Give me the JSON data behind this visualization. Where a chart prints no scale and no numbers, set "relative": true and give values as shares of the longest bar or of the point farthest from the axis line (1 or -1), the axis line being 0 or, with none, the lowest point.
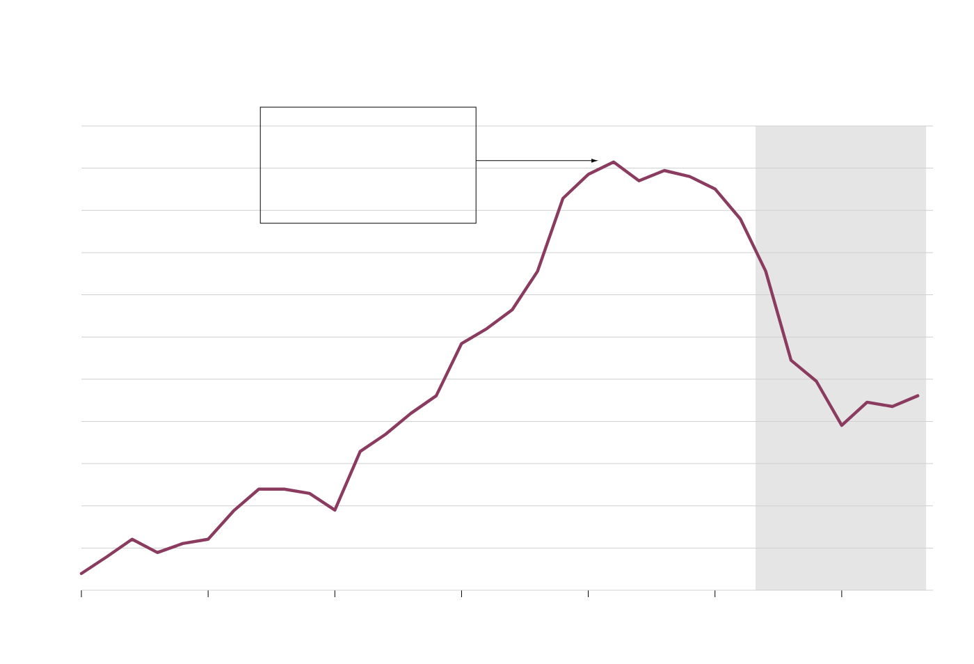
{
  "chart_data": {
    "type": "line",
    "relative": true,
    "categories": [
      null,
      null,
      null,
      null,
      null,
      null,
      null,
      null,
      null,
      null,
      null,
      null,
      null,
      null,
      null,
      null,
      null,
      null,
      null,
      null,
      null,
      null,
      null,
      null,
      null,
      null,
      null,
      null,
      null,
      null,
      null,
      null,
      null,
      null
    ],
    "grid": "y",
    "series": [
      {
        "color": "#8a3b5f",
        "values": [
          0.039,
          0.078,
          0.119,
          0.088,
          0.109,
          0.119,
          0.185,
          0.236,
          0.236,
          0.226,
          0.187,
          0.324,
          0.364,
          0.413,
          0.454,
          0.576,
          0.611,
          0.655,
          0.745,
          0.915,
          0.971,
          1,
          0.956,
          0.98,
          0.966,
          0.937,
          0.867,
          0.745,
          0.537,
          0.488,
          0.385,
          0.439,
          0.429,
          0.454
        ]
      }
    ]
  }
}
